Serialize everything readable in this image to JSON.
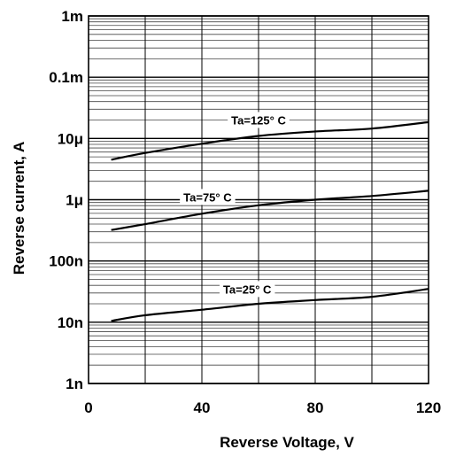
{
  "chart_data": {
    "type": "line",
    "title": "",
    "xlabel": "Reverse Voltage, V",
    "ylabel": "Reverse current, A",
    "x_ticks": [
      0,
      40,
      80,
      120
    ],
    "x_ticks_labeled": [
      "0",
      "40",
      "80",
      "120"
    ],
    "xlim": [
      0,
      120
    ],
    "yscale": "log",
    "ylim": [
      1e-09,
      0.001
    ],
    "y_ticks": [
      1e-09,
      1e-08,
      1e-07,
      1e-06,
      1e-05,
      0.0001,
      0.001
    ],
    "y_tick_labels": [
      "1n",
      "10n",
      "100n",
      "1μ",
      "10μ",
      "0.1m",
      "1m"
    ],
    "grid": true,
    "series": [
      {
        "name": "Ta=125°C",
        "label_text": "Ta=125° C",
        "color": "#000000",
        "x": [
          8,
          20,
          40,
          60,
          80,
          100,
          120
        ],
        "y": [
          4.5e-06,
          5.8e-06,
          8.2e-06,
          1.1e-05,
          1.3e-05,
          1.45e-05,
          1.85e-05
        ]
      },
      {
        "name": "Ta=75°C",
        "label_text": "Ta=75° C",
        "color": "#000000",
        "x": [
          8,
          20,
          40,
          60,
          80,
          100,
          120
        ],
        "y": [
          3.2e-07,
          4e-07,
          5.9e-07,
          8.1e-07,
          1e-06,
          1.15e-06,
          1.4e-06
        ]
      },
      {
        "name": "Ta=25°C",
        "label_text": "Ta=25° C",
        "color": "#000000",
        "x": [
          8,
          20,
          40,
          60,
          80,
          100,
          120
        ],
        "y": [
          1.05e-08,
          1.3e-08,
          1.6e-08,
          2e-08,
          2.3e-08,
          2.6e-08,
          3.5e-08
        ]
      }
    ]
  }
}
